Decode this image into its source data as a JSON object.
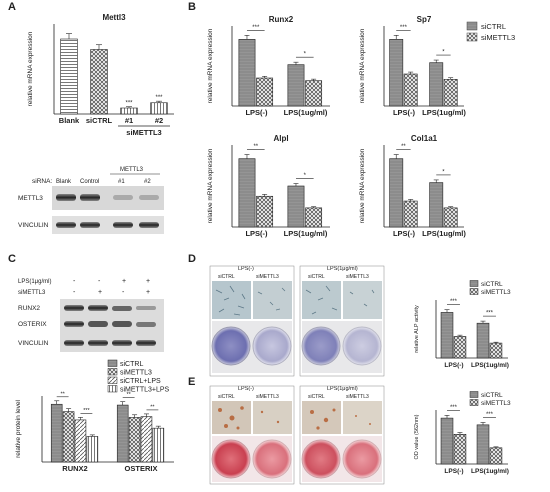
{
  "panels": {
    "A": "A",
    "B": "B",
    "C": "C",
    "D": "D",
    "E": "E"
  },
  "colors": {
    "solid": "#8c8c8c",
    "hatch_bg": "#ffffff",
    "hatch_line": "#555555",
    "text": "#222222"
  },
  "sig": {
    "s3": "***",
    "s2": "**",
    "s1": "*"
  },
  "chart_data": [
    {
      "id": "A-mettl3",
      "type": "bar",
      "title": "Mettl3",
      "ylabel": "relative mRNA expression",
      "categories": [
        "Blank",
        "siCTRL",
        "#1",
        "#2"
      ],
      "values": [
        1.0,
        0.86,
        0.08,
        0.15
      ],
      "group_label": "siMETTL3",
      "ylim": [
        0,
        1.2
      ],
      "significance": [
        "",
        "",
        "***",
        "***"
      ]
    },
    {
      "id": "B-runx2",
      "type": "bar",
      "title": "Runx2",
      "ylabel": "relative mRNA expression",
      "categories": [
        "LPS(-)",
        "LPS(1ug/ml)"
      ],
      "series": [
        {
          "name": "siCTRL",
          "values": [
            1.0,
            0.62
          ]
        },
        {
          "name": "siMETTL3",
          "values": [
            0.42,
            0.38
          ]
        }
      ],
      "ylim": [
        0,
        1.2
      ],
      "significance": [
        "***",
        "*"
      ]
    },
    {
      "id": "B-sp7",
      "type": "bar",
      "title": "Sp7",
      "ylabel": "relative mRNA expression",
      "categories": [
        "LPS(-)",
        "LPS(1ug/ml)"
      ],
      "series": [
        {
          "name": "siCTRL",
          "values": [
            1.0,
            0.65
          ]
        },
        {
          "name": "siMETTL3",
          "values": [
            0.48,
            0.4
          ]
        }
      ],
      "ylim": [
        0,
        1.2
      ],
      "significance": [
        "***",
        "*"
      ]
    },
    {
      "id": "B-alpl",
      "type": "bar",
      "title": "Alpl",
      "ylabel": "relative mRNA expression",
      "categories": [
        "LPS(-)",
        "LPS(1ug/ml)"
      ],
      "series": [
        {
          "name": "siCTRL",
          "values": [
            1.0,
            0.6
          ]
        },
        {
          "name": "siMETTL3",
          "values": [
            0.45,
            0.28
          ]
        }
      ],
      "ylim": [
        0,
        1.2
      ],
      "significance": [
        "**",
        "*"
      ]
    },
    {
      "id": "B-col1a1",
      "type": "bar",
      "title": "Col1a1",
      "ylabel": "relative mRNA expression",
      "categories": [
        "LPS(-)",
        "LPS(1ug/ml)"
      ],
      "series": [
        {
          "name": "siCTRL",
          "values": [
            1.0,
            0.65
          ]
        },
        {
          "name": "siMETTL3",
          "values": [
            0.38,
            0.28
          ]
        }
      ],
      "ylim": [
        0,
        1.2
      ],
      "significance": [
        "**",
        "*"
      ]
    },
    {
      "id": "C-protein",
      "type": "bar",
      "ylabel": "relative protein level",
      "categories": [
        "RUNX2",
        "OSTERIX"
      ],
      "series": [
        {
          "name": "siCTRL",
          "values": [
            1.4,
            1.38
          ]
        },
        {
          "name": "siMETTL3",
          "values": [
            1.22,
            1.08
          ]
        },
        {
          "name": "siCTRL+LPS",
          "values": [
            1.02,
            1.1
          ]
        },
        {
          "name": "siMETTL3+LPS",
          "values": [
            0.62,
            0.82
          ]
        }
      ],
      "ylim": [
        0,
        1.6
      ],
      "significance": [
        "**",
        "***",
        "**",
        "**"
      ]
    },
    {
      "id": "D-alp",
      "type": "bar",
      "ylabel": "relative ALP activity",
      "categories": [
        "LPS(-)",
        "LPS(1ug/ml)"
      ],
      "series": [
        {
          "name": "siCTRL",
          "values": [
            5.5,
            4.2
          ]
        },
        {
          "name": "siMETTL3",
          "values": [
            2.6,
            1.8
          ]
        }
      ],
      "ylim": [
        0,
        7
      ],
      "significance": [
        "***",
        "***"
      ]
    },
    {
      "id": "E-od",
      "type": "bar",
      "ylabel": "OD value (562nm)",
      "categories": [
        "LPS(-)",
        "LPS(1ug/ml)"
      ],
      "series": [
        {
          "name": "siCTRL",
          "values": [
            1.7,
            1.45
          ]
        },
        {
          "name": "siMETTL3",
          "values": [
            1.1,
            0.6
          ]
        }
      ],
      "ylim": [
        0,
        2
      ],
      "significance": [
        "***",
        "***"
      ]
    }
  ],
  "legend_B": [
    "siCTRL",
    "siMETTL3"
  ],
  "blot_A": {
    "header": "siRNA:",
    "cols": [
      "Blank",
      "Control",
      "#1",
      "#2"
    ],
    "group": "METTL3",
    "rows": [
      "METTL3",
      "VINCULIN"
    ]
  },
  "blot_C": {
    "row_labels": [
      "LPS(1μg/ml)",
      "siMETTL3"
    ],
    "signs": [
      [
        "-",
        "-",
        "+",
        "+"
      ],
      [
        "-",
        "+",
        "-",
        "+"
      ]
    ],
    "rows": [
      "RUNX2",
      "OSTERIX",
      "VINCULIN"
    ]
  },
  "D_img": {
    "top": [
      "LPS(-)",
      "LPS(1μg/ml)"
    ],
    "sub": [
      "siCTRL",
      "siMETTL3",
      "siCTRL",
      "siMETTL3"
    ]
  },
  "E_img": {
    "top": [
      "LPS(-)",
      "LPS(1μg/ml)"
    ],
    "sub": [
      "siCTRL",
      "siMETTL3",
      "siCTRL",
      "siMETTL3"
    ]
  }
}
